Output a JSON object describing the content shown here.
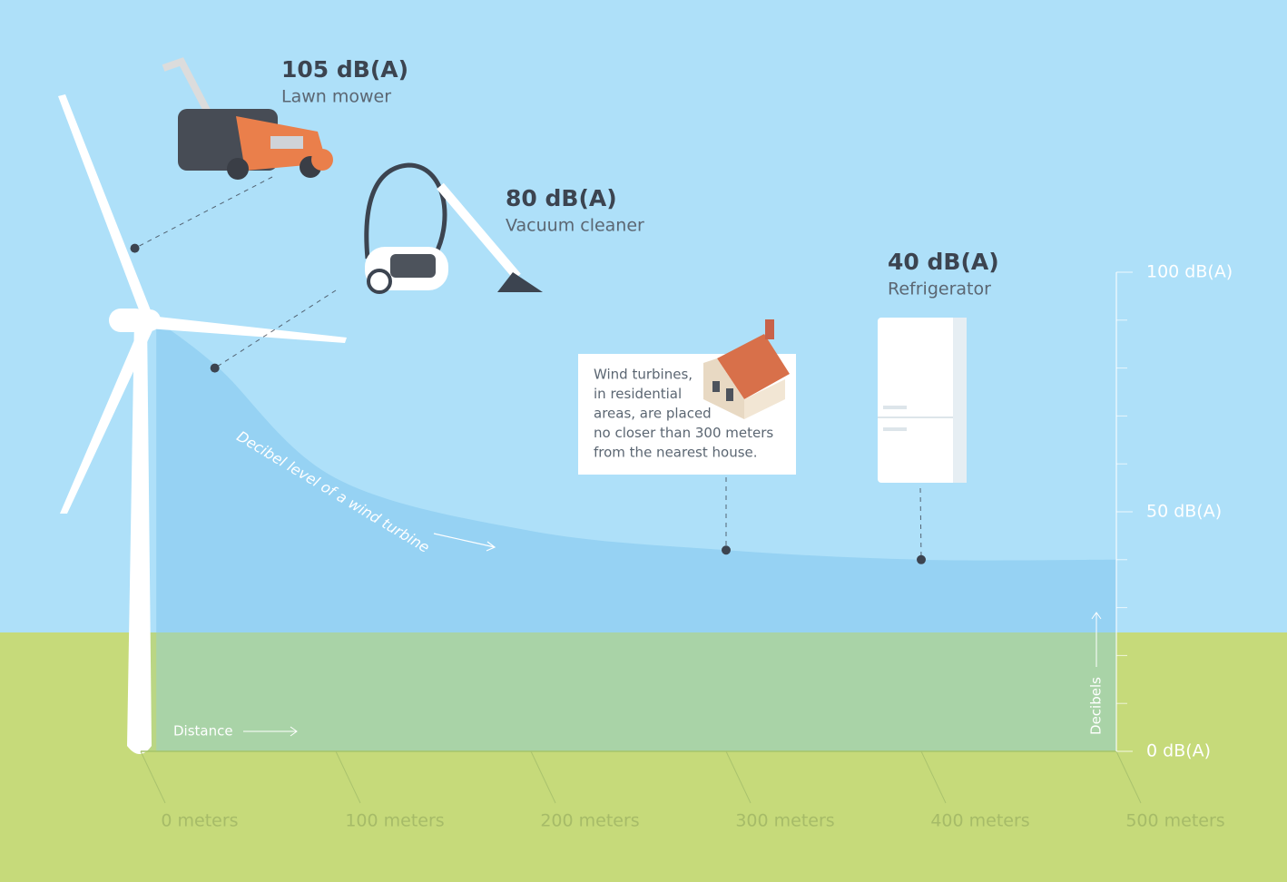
{
  "chart_data": {
    "type": "area",
    "series": [
      {
        "name": "Decibel level of a wind turbine",
        "color": "#8dcdf0",
        "x": [
          8,
          40,
          100,
          200,
          300,
          400,
          500
        ],
        "values": [
          90,
          80,
          57,
          46,
          42,
          40,
          40
        ]
      }
    ],
    "xlabel": "Distance",
    "ylabel": "Decibels",
    "xlim": [
      0,
      500
    ],
    "ylim": [
      0,
      100
    ],
    "xticks": [
      {
        "value": 0,
        "label": "0 meters"
      },
      {
        "value": 100,
        "label": "100 meters"
      },
      {
        "value": 200,
        "label": "200 meters"
      },
      {
        "value": 300,
        "label": "300 meters"
      },
      {
        "value": 400,
        "label": "400 meters"
      },
      {
        "value": 500,
        "label": "500 meters"
      }
    ],
    "yticks": [
      {
        "value": 0,
        "label": "0 dB(A)"
      },
      {
        "value": 50,
        "label": "50 dB(A)"
      },
      {
        "value": 100,
        "label": "100 dB(A)"
      }
    ],
    "yminor_ticks": [
      10,
      20,
      30,
      40,
      60,
      70,
      80,
      90
    ],
    "annotations": [
      {
        "title": "105 dB(A)",
        "text": "Lawn mower",
        "x": -3,
        "y": 105
      },
      {
        "title": "80 dB(A)",
        "text": "Vacuum cleaner",
        "x": 38,
        "y": 80
      },
      {
        "title": "40 dB(A)",
        "text": "Refrigerator",
        "x": 400,
        "y": 40
      }
    ],
    "note": {
      "lines": [
        "Wind turbines,",
        "in residential",
        "areas, are placed",
        "no closer than 300 meters",
        "from the nearest house."
      ],
      "x": 300,
      "y": 42
    }
  }
}
